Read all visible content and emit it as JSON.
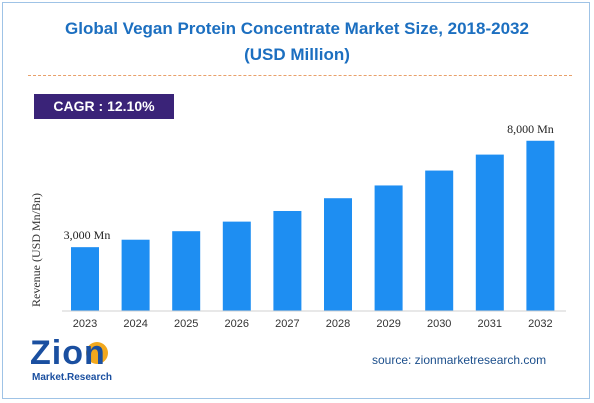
{
  "chart_data": {
    "type": "bar",
    "title": "Global Vegan Protein Concentrate Market Size, 2018-2032",
    "subtitle": "(USD Million)",
    "ylabel": "Revenue (USD Mn/Bn)",
    "xlabel": "",
    "categories": [
      "2023",
      "2024",
      "2025",
      "2026",
      "2027",
      "2028",
      "2029",
      "2030",
      "2031",
      "2032"
    ],
    "values": [
      3000,
      3350,
      3750,
      4200,
      4700,
      5300,
      5900,
      6600,
      7350,
      8000
    ],
    "data_labels": {
      "first": "3,000 Mn",
      "last": "8,000 Mn"
    },
    "ylim": [
      0,
      8600
    ],
    "grid": false,
    "legend": "none",
    "bar_color": "#1e8ef2"
  },
  "badge": {
    "label": "CAGR : 12.10%"
  },
  "footer": {
    "source": "source: zionmarketresearch.com"
  },
  "logo": {
    "name": "Zion",
    "sub": "Market.Research"
  },
  "colors": {
    "title": "#1c6fc0",
    "badge_bg": "#3a2378"
  }
}
